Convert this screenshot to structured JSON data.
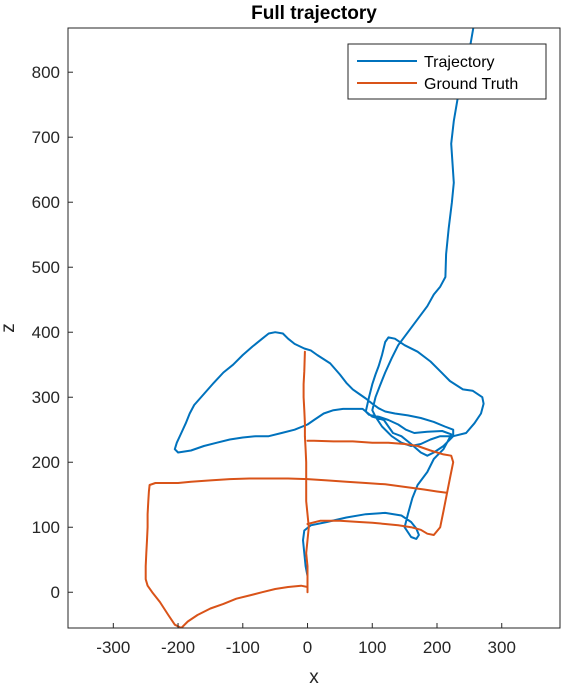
{
  "chart_data": {
    "type": "line",
    "title": "Full trajectory",
    "xlabel": "x",
    "ylabel": "z",
    "xlim": [
      -370,
      390
    ],
    "ylim": [
      -55,
      868
    ],
    "xticks": [
      -300,
      -200,
      -100,
      0,
      100,
      200,
      300
    ],
    "yticks": [
      0,
      100,
      200,
      300,
      400,
      500,
      600,
      700,
      800
    ],
    "grid": false,
    "legend_position": "top-right",
    "series": [
      {
        "name": "Trajectory",
        "color": "#0072BD",
        "points": [
          [
            0,
            25
          ],
          [
            -3,
            40
          ],
          [
            -5,
            60
          ],
          [
            -7,
            80
          ],
          [
            -5,
            95
          ],
          [
            5,
            103
          ],
          [
            30,
            108
          ],
          [
            60,
            115
          ],
          [
            90,
            120
          ],
          [
            120,
            122
          ],
          [
            145,
            118
          ],
          [
            160,
            108
          ],
          [
            168,
            98
          ],
          [
            172,
            88
          ],
          [
            168,
            82
          ],
          [
            160,
            85
          ],
          [
            150,
            100
          ],
          [
            155,
            120
          ],
          [
            162,
            145
          ],
          [
            170,
            165
          ],
          [
            185,
            185
          ],
          [
            195,
            205
          ],
          [
            200,
            210
          ],
          [
            210,
            220
          ],
          [
            218,
            235
          ],
          [
            222,
            243
          ],
          [
            208,
            248
          ],
          [
            185,
            247
          ],
          [
            165,
            245
          ],
          [
            152,
            250
          ],
          [
            140,
            258
          ],
          [
            125,
            265
          ],
          [
            110,
            270
          ],
          [
            95,
            273
          ],
          [
            90,
            278
          ],
          [
            85,
            282
          ],
          [
            70,
            282
          ],
          [
            55,
            282
          ],
          [
            40,
            280
          ],
          [
            25,
            275
          ],
          [
            10,
            265
          ],
          [
            0,
            258
          ],
          [
            -20,
            250
          ],
          [
            -40,
            245
          ],
          [
            -60,
            240
          ],
          [
            -80,
            240
          ],
          [
            -100,
            238
          ],
          [
            -120,
            235
          ],
          [
            -140,
            230
          ],
          [
            -160,
            225
          ],
          [
            -180,
            218
          ],
          [
            -200,
            215
          ],
          [
            -205,
            220
          ],
          [
            -202,
            230
          ],
          [
            -195,
            245
          ],
          [
            -188,
            260
          ],
          [
            -182,
            275
          ],
          [
            -175,
            288
          ],
          [
            -160,
            305
          ],
          [
            -145,
            322
          ],
          [
            -130,
            338
          ],
          [
            -115,
            350
          ],
          [
            -100,
            365
          ],
          [
            -85,
            378
          ],
          [
            -70,
            390
          ],
          [
            -60,
            398
          ],
          [
            -50,
            400
          ],
          [
            -38,
            398
          ],
          [
            -30,
            390
          ],
          [
            -20,
            382
          ],
          [
            -5,
            375
          ],
          [
            5,
            372
          ],
          [
            15,
            365
          ],
          [
            35,
            352
          ],
          [
            50,
            335
          ],
          [
            60,
            322
          ],
          [
            70,
            312
          ],
          [
            80,
            305
          ],
          [
            90,
            298
          ],
          [
            100,
            290
          ],
          [
            110,
            283
          ],
          [
            120,
            278
          ],
          [
            135,
            275
          ],
          [
            155,
            272
          ],
          [
            175,
            268
          ],
          [
            195,
            262
          ],
          [
            212,
            255
          ],
          [
            225,
            250
          ],
          [
            225,
            240
          ],
          [
            210,
            225
          ],
          [
            195,
            215
          ],
          [
            185,
            210
          ],
          [
            175,
            215
          ],
          [
            160,
            228
          ],
          [
            145,
            240
          ],
          [
            132,
            245
          ],
          [
            125,
            255
          ],
          [
            118,
            265
          ],
          [
            100,
            270
          ],
          [
            90,
            278
          ],
          [
            95,
            300
          ],
          [
            100,
            320
          ],
          [
            105,
            335
          ],
          [
            110,
            348
          ],
          [
            115,
            365
          ],
          [
            120,
            385
          ],
          [
            125,
            392
          ],
          [
            135,
            390
          ],
          [
            150,
            380
          ],
          [
            170,
            370
          ],
          [
            190,
            355
          ],
          [
            205,
            340
          ],
          [
            220,
            325
          ],
          [
            240,
            312
          ],
          [
            255,
            310
          ],
          [
            270,
            300
          ],
          [
            272,
            290
          ],
          [
            268,
            275
          ],
          [
            258,
            260
          ],
          [
            245,
            245
          ],
          [
            225,
            240
          ],
          [
            205,
            240
          ],
          [
            190,
            235
          ],
          [
            175,
            228
          ],
          [
            160,
            225
          ],
          [
            145,
            230
          ],
          [
            130,
            240
          ],
          [
            115,
            255
          ],
          [
            105,
            270
          ],
          [
            100,
            280
          ],
          [
            105,
            300
          ],
          [
            112,
            318
          ],
          [
            120,
            338
          ],
          [
            130,
            360
          ],
          [
            140,
            380
          ],
          [
            155,
            400
          ],
          [
            170,
            420
          ],
          [
            185,
            440
          ],
          [
            195,
            458
          ],
          [
            205,
            470
          ],
          [
            213,
            485
          ],
          [
            214,
            520
          ],
          [
            218,
            560
          ],
          [
            223,
            600
          ],
          [
            226,
            630
          ],
          [
            224,
            660
          ],
          [
            222,
            690
          ],
          [
            226,
            725
          ],
          [
            232,
            760
          ],
          [
            238,
            785
          ],
          [
            243,
            805
          ],
          [
            248,
            825
          ],
          [
            252,
            845
          ],
          [
            256,
            868
          ]
        ]
      },
      {
        "name": "Ground Truth",
        "color": "#D95319",
        "points": [
          [
            0,
            0
          ],
          [
            0,
            20
          ],
          [
            0,
            40
          ],
          [
            -2,
            60
          ],
          [
            0,
            80
          ],
          [
            2,
            100
          ],
          [
            0,
            120
          ],
          [
            -2,
            140
          ],
          [
            -2,
            160
          ],
          [
            -2,
            180
          ],
          [
            -2,
            200
          ],
          [
            -3,
            220
          ],
          [
            -4,
            240
          ],
          [
            -4,
            260
          ],
          [
            -5,
            280
          ],
          [
            -6,
            300
          ],
          [
            -6,
            320
          ],
          [
            -5,
            340
          ],
          [
            -4,
            370
          ],
          null,
          [
            0,
            8
          ],
          [
            -10,
            10
          ],
          [
            -30,
            8
          ],
          [
            -50,
            5
          ],
          [
            -70,
            0
          ],
          [
            -90,
            -5
          ],
          [
            -110,
            -10
          ],
          [
            -130,
            -18
          ],
          [
            -150,
            -25
          ],
          [
            -170,
            -35
          ],
          [
            -185,
            -45
          ],
          [
            -195,
            -55
          ],
          [
            -205,
            -50
          ],
          [
            -215,
            -35
          ],
          [
            -228,
            -15
          ],
          [
            -240,
            0
          ],
          [
            -247,
            10
          ],
          [
            -250,
            20
          ],
          [
            -250,
            40
          ],
          [
            -249,
            60
          ],
          [
            -248,
            80
          ],
          [
            -247,
            100
          ],
          [
            -247,
            120
          ],
          [
            -246,
            140
          ],
          [
            -245,
            155
          ],
          [
            -244,
            165
          ],
          [
            -235,
            168
          ],
          [
            -220,
            168
          ],
          [
            -200,
            168
          ],
          [
            -180,
            170
          ],
          [
            -150,
            172
          ],
          [
            -120,
            174
          ],
          [
            -90,
            175
          ],
          [
            -60,
            175
          ],
          [
            -30,
            175
          ],
          [
            0,
            174
          ],
          [
            30,
            172
          ],
          [
            60,
            170
          ],
          [
            90,
            168
          ],
          [
            120,
            166
          ],
          [
            150,
            162
          ],
          [
            180,
            158
          ],
          [
            200,
            155
          ],
          [
            215,
            153
          ],
          null,
          [
            0,
            105
          ],
          [
            20,
            110
          ],
          [
            50,
            110
          ],
          [
            80,
            108
          ],
          [
            100,
            107
          ],
          [
            120,
            105
          ],
          [
            140,
            103
          ],
          [
            160,
            100
          ],
          [
            175,
            96
          ],
          [
            185,
            90
          ],
          [
            195,
            88
          ],
          [
            205,
            100
          ],
          [
            210,
            125
          ],
          [
            215,
            150
          ],
          [
            220,
            175
          ],
          [
            225,
            200
          ],
          [
            222,
            210
          ],
          [
            210,
            212
          ],
          [
            190,
            218
          ],
          [
            170,
            225
          ],
          [
            150,
            228
          ],
          [
            125,
            230
          ],
          [
            100,
            230
          ],
          [
            70,
            232
          ],
          [
            40,
            232
          ],
          [
            10,
            233
          ],
          [
            0,
            233
          ]
        ]
      }
    ]
  }
}
